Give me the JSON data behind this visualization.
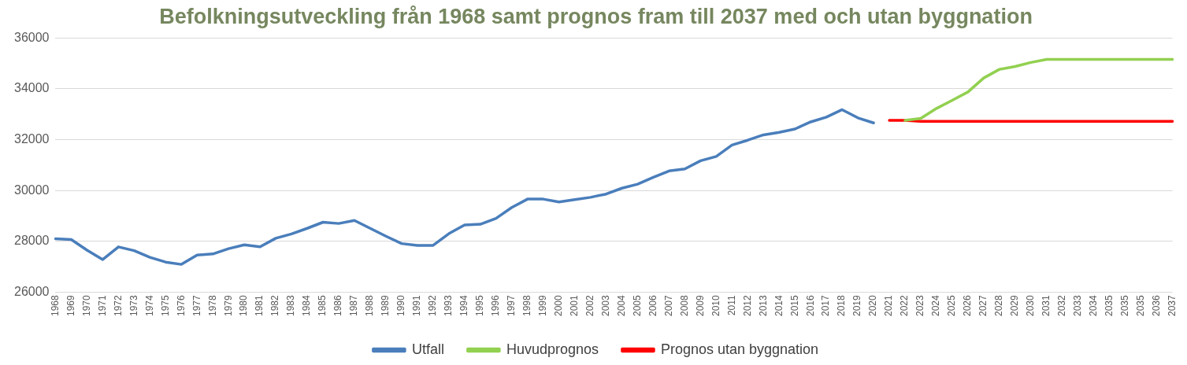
{
  "chart_data": {
    "type": "line",
    "title": "Befolkningsutveckling från 1968 samt prognos fram till 2037 med och utan byggnation",
    "categories": [
      "1968",
      "1969",
      "1970",
      "1971",
      "1972",
      "1973",
      "1974",
      "1975",
      "1976",
      "1977",
      "1978",
      "1979",
      "1980",
      "1981",
      "1982",
      "1983",
      "1984",
      "1985",
      "1986",
      "1987",
      "1988",
      "1989",
      "1990",
      "1991",
      "1992",
      "1993",
      "1994",
      "1995",
      "1996",
      "1997",
      "1998",
      "1999",
      "2000",
      "2001",
      "2002",
      "2003",
      "2004",
      "2005",
      "2006",
      "2007",
      "2008",
      "2009",
      "2010",
      "2011",
      "2012",
      "2013",
      "2014",
      "2015",
      "2016",
      "2017",
      "2018",
      "2019",
      "2020",
      "2021",
      "2022",
      "2023",
      "2024",
      "2025",
      "2026",
      "2027",
      "2028",
      "2029",
      "2030",
      "2031",
      "2032",
      "2033",
      "2034",
      "2035",
      "2035",
      "2035",
      "2036",
      "2037"
    ],
    "series": [
      {
        "name": "Utfall",
        "color": "#4a7ebb",
        "values": [
          28100,
          28070,
          27650,
          27280,
          27780,
          27630,
          27370,
          27180,
          27090,
          27460,
          27500,
          27710,
          27860,
          27780,
          28120,
          28290,
          28510,
          28750,
          28700,
          28820,
          28510,
          28200,
          27910,
          27840,
          27840,
          28300,
          28640,
          28670,
          28900,
          29330,
          29660,
          29660,
          29550,
          29640,
          29730,
          29860,
          30090,
          30250,
          30520,
          30770,
          30850,
          31170,
          31340,
          31790,
          31980,
          32190,
          32290,
          32420,
          32700,
          32890,
          33180,
          32860,
          32660,
          null,
          null,
          null,
          null,
          null,
          null,
          null,
          null,
          null,
          null,
          null,
          null,
          null,
          null,
          null,
          null,
          null,
          null,
          null
        ]
      },
      {
        "name": "Huvudprognos",
        "color": "#92d050",
        "values": [
          null,
          null,
          null,
          null,
          null,
          null,
          null,
          null,
          null,
          null,
          null,
          null,
          null,
          null,
          null,
          null,
          null,
          null,
          null,
          null,
          null,
          null,
          null,
          null,
          null,
          null,
          null,
          null,
          null,
          null,
          null,
          null,
          null,
          null,
          null,
          null,
          null,
          null,
          null,
          null,
          null,
          null,
          null,
          null,
          null,
          null,
          null,
          null,
          null,
          null,
          null,
          null,
          null,
          null,
          32760,
          32840,
          33230,
          33550,
          33880,
          34430,
          34770,
          34880,
          35040,
          35160,
          35160,
          35160,
          35160,
          35160,
          35160,
          35160,
          35160,
          35160
        ]
      },
      {
        "name": "Prognos utan byggnation",
        "color": "#ff0000",
        "values": [
          null,
          null,
          null,
          null,
          null,
          null,
          null,
          null,
          null,
          null,
          null,
          null,
          null,
          null,
          null,
          null,
          null,
          null,
          null,
          null,
          null,
          null,
          null,
          null,
          null,
          null,
          null,
          null,
          null,
          null,
          null,
          null,
          null,
          null,
          null,
          null,
          null,
          null,
          null,
          null,
          null,
          null,
          null,
          null,
          null,
          null,
          null,
          null,
          null,
          null,
          null,
          null,
          null,
          32760,
          32760,
          32720,
          32720,
          32720,
          32720,
          32720,
          32720,
          32720,
          32720,
          32720,
          32720,
          32720,
          32720,
          32720,
          32720,
          32720,
          32720,
          32720
        ]
      }
    ],
    "ylim": [
      26000,
      36000
    ],
    "yticks": [
      26000,
      28000,
      30000,
      32000,
      34000,
      36000
    ],
    "grid": "y",
    "legend": "bottom",
    "marker": "none",
    "line_style": "solid"
  }
}
